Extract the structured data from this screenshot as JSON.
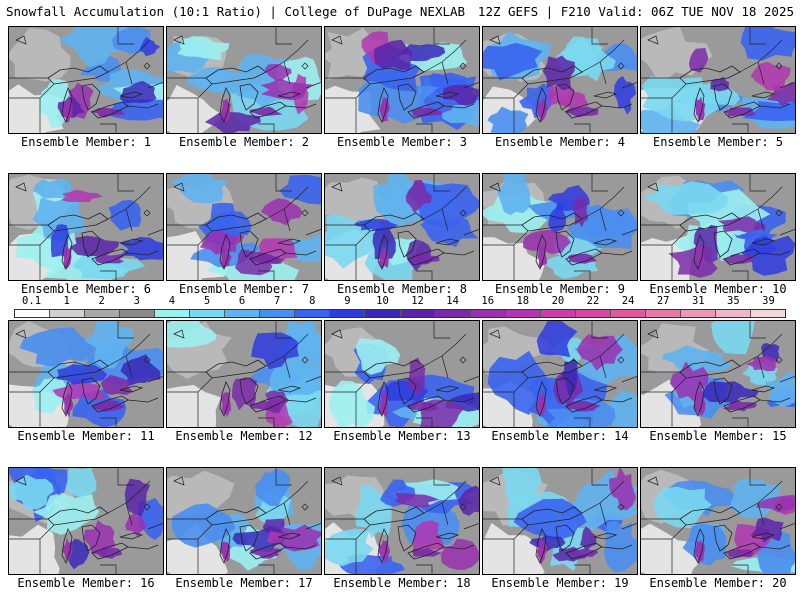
{
  "header": {
    "left": "Snowfall Accumulation (10:1 Ratio) | College of DuPage NEXLAB",
    "right": "12Z GEFS | F210 Valid: 06Z TUE NOV 18 2025"
  },
  "colorbar": {
    "labels": [
      "0.1",
      "1",
      "2",
      "3",
      "4",
      "5",
      "6",
      "7",
      "8",
      "9",
      "10",
      "12",
      "14",
      "16",
      "18",
      "20",
      "22",
      "24",
      "27",
      "31",
      "35",
      "39"
    ],
    "colors": [
      "#ffffff",
      "#d0d0d0",
      "#a8a8a8",
      "#8a8a8a",
      "#9cf0f0",
      "#7ad8f0",
      "#5fb4f0",
      "#4a8ef0",
      "#3a64f0",
      "#2e3ce0",
      "#3a28b8",
      "#5a24a8",
      "#7a2aa8",
      "#9a30b0",
      "#b236b0",
      "#c83ea8",
      "#d6489e",
      "#de5a9a",
      "#e67aa6",
      "#ea98b4",
      "#eeb8c6",
      "#f2d6da"
    ]
  },
  "panels": [
    {
      "label": "Ensemble Member: 1"
    },
    {
      "label": "Ensemble Member: 2"
    },
    {
      "label": "Ensemble Member: 3"
    },
    {
      "label": "Ensemble Member: 4"
    },
    {
      "label": "Ensemble Member: 5"
    },
    {
      "label": "Ensemble Member: 6"
    },
    {
      "label": "Ensemble Member: 7"
    },
    {
      "label": "Ensemble Member: 8"
    },
    {
      "label": "Ensemble Member: 9"
    },
    {
      "label": "Ensemble Member: 10"
    },
    {
      "label": "Ensemble Member: 11"
    },
    {
      "label": "Ensemble Member: 12"
    },
    {
      "label": "Ensemble Member: 13"
    },
    {
      "label": "Ensemble Member: 14"
    },
    {
      "label": "Ensemble Member: 15"
    },
    {
      "label": "Ensemble Member: 16"
    },
    {
      "label": "Ensemble Member: 17"
    },
    {
      "label": "Ensemble Member: 18"
    },
    {
      "label": "Ensemble Member: 19"
    },
    {
      "label": "Ensemble Member: 20"
    }
  ]
}
